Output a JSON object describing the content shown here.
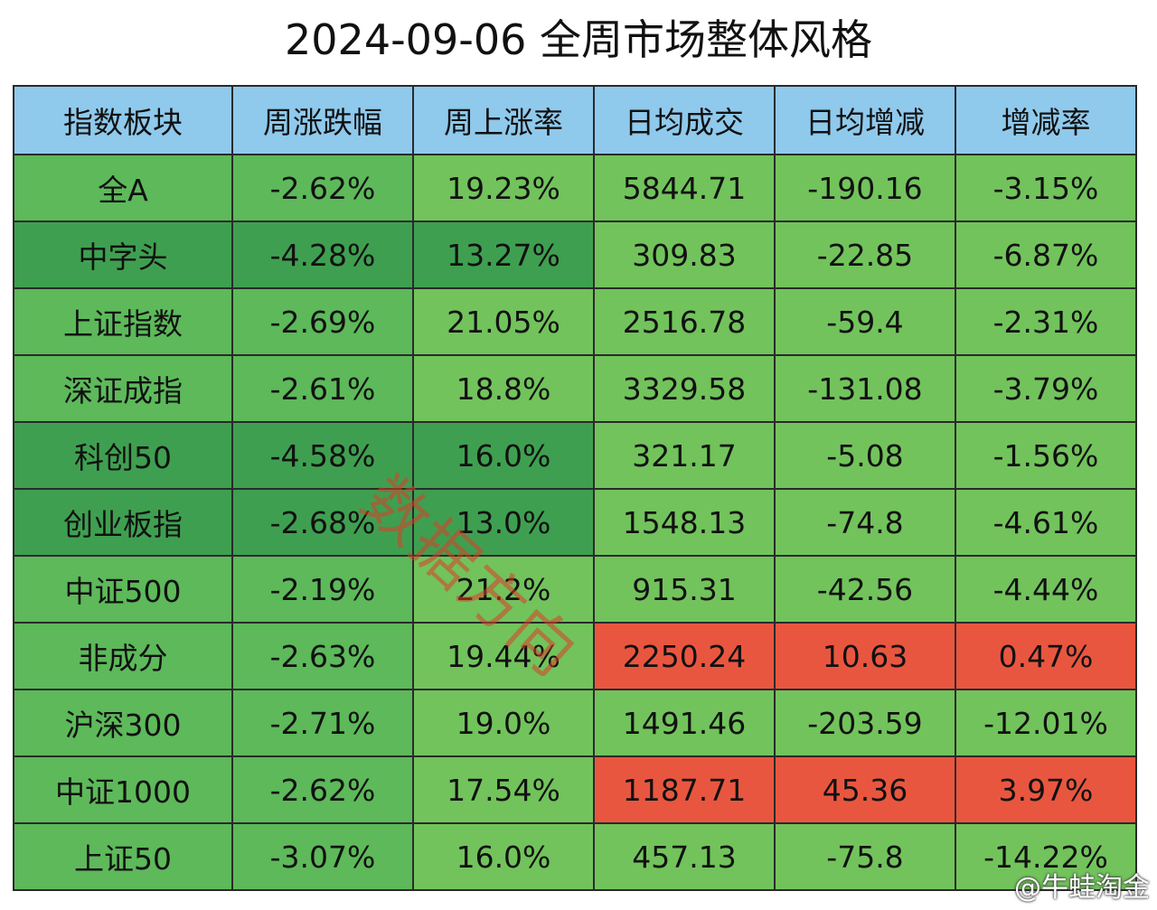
{
  "title": "2024-09-06 全周市场整体风格",
  "table": {
    "header": [
      "指数板块",
      "周涨跌幅",
      "周上涨率",
      "日均成交",
      "日均增减",
      "增减率"
    ],
    "rows": [
      [
        "全A",
        "-2.62%",
        "19.23%",
        "5844.71",
        "-190.16",
        "-3.15%"
      ],
      [
        "中字头",
        "-4.28%",
        "13.27%",
        "309.83",
        "-22.85",
        "-6.87%"
      ],
      [
        "上证指数",
        "-2.69%",
        "21.05%",
        "2516.78",
        "-59.4",
        "-2.31%"
      ],
      [
        "深证成指",
        "-2.61%",
        "18.8%",
        "3329.58",
        "-131.08",
        "-3.79%"
      ],
      [
        "科创50",
        "-4.58%",
        "16.0%",
        "321.17",
        "-5.08",
        "-1.56%"
      ],
      [
        "创业板指",
        "-2.68%",
        "13.0%",
        "1548.13",
        "-74.8",
        "-4.61%"
      ],
      [
        "中证500",
        "-2.19%",
        "21.2%",
        "915.31",
        "-42.56",
        "-4.44%"
      ],
      [
        "非成分",
        "-2.63%",
        "19.44%",
        "2250.24",
        "10.63",
        "0.47%"
      ],
      [
        "沪深300",
        "-2.71%",
        "19.0%",
        "1491.46",
        "-203.59",
        "-12.01%"
      ],
      [
        "中证1000",
        "-2.62%",
        "17.54%",
        "1187.71",
        "45.36",
        "3.97%"
      ],
      [
        "上证50",
        "-3.07%",
        "16.0%",
        "457.13",
        "-75.8",
        "-14.22%"
      ]
    ],
    "header_color": "#8fc9ec",
    "cell_colors": [
      [
        "#5db95a",
        "#5db95a",
        "#72c35c",
        "#72c35c",
        "#72c35c",
        "#72c35c"
      ],
      [
        "#3f9f50",
        "#3f9f50",
        "#3f9f50",
        "#72c35c",
        "#72c35c",
        "#72c35c"
      ],
      [
        "#5db95a",
        "#5db95a",
        "#72c35c",
        "#72c35c",
        "#72c35c",
        "#72c35c"
      ],
      [
        "#5db95a",
        "#5db95a",
        "#72c35c",
        "#72c35c",
        "#72c35c",
        "#72c35c"
      ],
      [
        "#3f9f50",
        "#3f9f50",
        "#3f9f50",
        "#72c35c",
        "#72c35c",
        "#72c35c"
      ],
      [
        "#3f9f50",
        "#3f9f50",
        "#3f9f50",
        "#72c35c",
        "#72c35c",
        "#72c35c"
      ],
      [
        "#5db95a",
        "#5db95a",
        "#72c35c",
        "#72c35c",
        "#72c35c",
        "#72c35c"
      ],
      [
        "#5db95a",
        "#5db95a",
        "#72c35c",
        "#e9563f",
        "#e9563f",
        "#e9563f"
      ],
      [
        "#5db95a",
        "#5db95a",
        "#72c35c",
        "#72c35c",
        "#72c35c",
        "#72c35c"
      ],
      [
        "#5db95a",
        "#5db95a",
        "#72c35c",
        "#e9563f",
        "#e9563f",
        "#e9563f"
      ],
      [
        "#5db95a",
        "#5db95a",
        "#72c35c",
        "#72c35c",
        "#72c35c",
        "#72c35c"
      ]
    ]
  },
  "watermark": "数据方向",
  "signature": "@牛蛙淘金"
}
